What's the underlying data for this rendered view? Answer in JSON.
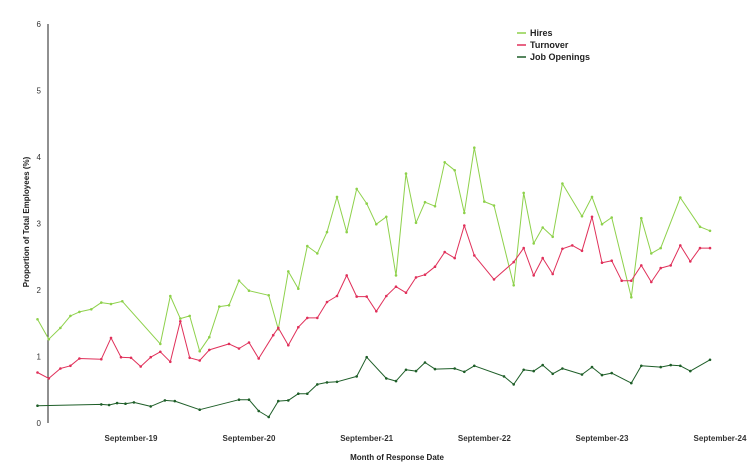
{
  "chart_data": {
    "type": "line",
    "xlabel": "Month of Response Date",
    "ylabel": "Proportion of Total Employees (%)",
    "ylim": [
      0,
      6
    ],
    "yticks": [
      "0",
      "1",
      "2",
      "3",
      "4",
      "5",
      "6"
    ],
    "xticks": [
      {
        "label": "September-19",
        "date": "2019-09"
      },
      {
        "label": "September-20",
        "date": "2020-09"
      },
      {
        "label": "September-21",
        "date": "2021-09"
      },
      {
        "label": "September-22",
        "date": "2022-09"
      },
      {
        "label": "September-23",
        "date": "2023-09"
      },
      {
        "label": "September-24",
        "date": "2024-09"
      }
    ],
    "legend_position": "top-right",
    "series": [
      {
        "name": "Hires",
        "color": "#8ed14b",
        "points": [
          [
            "2018-11-15",
            1.56
          ],
          [
            "2018-12-20",
            1.26
          ],
          [
            "2019-01-25",
            1.43
          ],
          [
            "2019-02-25",
            1.61
          ],
          [
            "2019-03-25",
            1.67
          ],
          [
            "2019-05-01",
            1.71
          ],
          [
            "2019-06-01",
            1.81
          ],
          [
            "2019-07-01",
            1.79
          ],
          [
            "2019-08-05",
            1.83
          ],
          [
            "2019-12-01",
            1.19
          ],
          [
            "2020-01-01",
            1.91
          ],
          [
            "2020-02-01",
            1.57
          ],
          [
            "2020-03-01",
            1.61
          ],
          [
            "2020-04-01",
            1.08
          ],
          [
            "2020-05-01",
            1.29
          ],
          [
            "2020-06-01",
            1.75
          ],
          [
            "2020-07-01",
            1.77
          ],
          [
            "2020-08-01",
            2.14
          ],
          [
            "2020-09-01",
            1.99
          ],
          [
            "2020-11-01",
            1.92
          ],
          [
            "2020-12-01",
            1.41
          ],
          [
            "2021-01-01",
            2.28
          ],
          [
            "2021-02-01",
            2.02
          ],
          [
            "2021-03-01",
            2.66
          ],
          [
            "2021-04-01",
            2.55
          ],
          [
            "2021-05-01",
            2.87
          ],
          [
            "2021-06-01",
            3.4
          ],
          [
            "2021-07-01",
            2.87
          ],
          [
            "2021-08-01",
            3.52
          ],
          [
            "2021-09-01",
            3.3
          ],
          [
            "2021-10-01",
            2.99
          ],
          [
            "2021-11-01",
            3.1
          ],
          [
            "2021-12-01",
            2.22
          ],
          [
            "2022-01-01",
            3.75
          ],
          [
            "2022-02-01",
            3.01
          ],
          [
            "2022-03-01",
            3.32
          ],
          [
            "2022-04-01",
            3.26
          ],
          [
            "2022-05-01",
            3.92
          ],
          [
            "2022-06-01",
            3.8
          ],
          [
            "2022-07-01",
            3.16
          ],
          [
            "2022-08-01",
            4.14
          ],
          [
            "2022-09-01",
            3.33
          ],
          [
            "2022-10-01",
            3.27
          ],
          [
            "2022-12-01",
            2.07
          ],
          [
            "2023-01-01",
            3.46
          ],
          [
            "2023-02-01",
            2.7
          ],
          [
            "2023-03-01",
            2.94
          ],
          [
            "2023-04-01",
            2.8
          ],
          [
            "2023-05-01",
            3.6
          ],
          [
            "2023-07-01",
            3.11
          ],
          [
            "2023-08-01",
            3.4
          ],
          [
            "2023-09-01",
            2.99
          ],
          [
            "2023-10-01",
            3.09
          ],
          [
            "2023-12-01",
            1.89
          ],
          [
            "2024-01-01",
            3.08
          ],
          [
            "2024-02-01",
            2.55
          ],
          [
            "2024-03-01",
            2.63
          ],
          [
            "2024-05-01",
            3.39
          ],
          [
            "2024-07-01",
            2.95
          ],
          [
            "2024-08-01",
            2.89
          ]
        ]
      },
      {
        "name": "Turnover",
        "color": "#e0305a",
        "points": [
          [
            "2018-11-15",
            0.76
          ],
          [
            "2018-12-20",
            0.67
          ],
          [
            "2019-01-25",
            0.82
          ],
          [
            "2019-02-25",
            0.86
          ],
          [
            "2019-03-25",
            0.97
          ],
          [
            "2019-06-01",
            0.96
          ],
          [
            "2019-07-01",
            1.28
          ],
          [
            "2019-08-01",
            0.99
          ],
          [
            "2019-09-01",
            0.98
          ],
          [
            "2019-10-01",
            0.85
          ],
          [
            "2019-11-01",
            0.99
          ],
          [
            "2019-12-01",
            1.07
          ],
          [
            "2020-01-01",
            0.92
          ],
          [
            "2020-02-01",
            1.53
          ],
          [
            "2020-03-01",
            0.98
          ],
          [
            "2020-04-01",
            0.94
          ],
          [
            "2020-05-01",
            1.1
          ],
          [
            "2020-07-01",
            1.19
          ],
          [
            "2020-08-01",
            1.12
          ],
          [
            "2020-09-01",
            1.21
          ],
          [
            "2020-10-01",
            0.97
          ],
          [
            "2020-11-15",
            1.32
          ],
          [
            "2020-12-01",
            1.43
          ],
          [
            "2021-01-01",
            1.17
          ],
          [
            "2021-02-01",
            1.44
          ],
          [
            "2021-03-01",
            1.58
          ],
          [
            "2021-04-01",
            1.58
          ],
          [
            "2021-05-01",
            1.82
          ],
          [
            "2021-06-01",
            1.91
          ],
          [
            "2021-07-01",
            2.22
          ],
          [
            "2021-08-01",
            1.9
          ],
          [
            "2021-09-01",
            1.9
          ],
          [
            "2021-10-01",
            1.68
          ],
          [
            "2021-11-01",
            1.91
          ],
          [
            "2021-12-01",
            2.05
          ],
          [
            "2022-01-01",
            1.96
          ],
          [
            "2022-02-01",
            2.19
          ],
          [
            "2022-03-01",
            2.23
          ],
          [
            "2022-04-01",
            2.35
          ],
          [
            "2022-05-01",
            2.57
          ],
          [
            "2022-06-01",
            2.48
          ],
          [
            "2022-07-01",
            2.97
          ],
          [
            "2022-08-01",
            2.52
          ],
          [
            "2022-10-01",
            2.16
          ],
          [
            "2022-12-01",
            2.42
          ],
          [
            "2023-01-01",
            2.63
          ],
          [
            "2023-02-01",
            2.22
          ],
          [
            "2023-03-01",
            2.48
          ],
          [
            "2023-04-01",
            2.24
          ],
          [
            "2023-05-01",
            2.62
          ],
          [
            "2023-06-01",
            2.67
          ],
          [
            "2023-07-01",
            2.59
          ],
          [
            "2023-08-01",
            3.1
          ],
          [
            "2023-09-01",
            2.41
          ],
          [
            "2023-10-01",
            2.44
          ],
          [
            "2023-11-01",
            2.14
          ],
          [
            "2023-12-01",
            2.14
          ],
          [
            "2024-01-01",
            2.37
          ],
          [
            "2024-02-01",
            2.12
          ],
          [
            "2024-03-01",
            2.33
          ],
          [
            "2024-04-01",
            2.37
          ],
          [
            "2024-05-01",
            2.67
          ],
          [
            "2024-06-01",
            2.43
          ],
          [
            "2024-07-01",
            2.63
          ],
          [
            "2024-08-01",
            2.63
          ]
        ]
      },
      {
        "name": "Job Openings",
        "color": "#1e5e28",
        "points": [
          [
            "2018-11-15",
            0.26
          ],
          [
            "2019-06-01",
            0.28
          ],
          [
            "2019-06-25",
            0.27
          ],
          [
            "2019-07-20",
            0.3
          ],
          [
            "2019-08-15",
            0.29
          ],
          [
            "2019-09-10",
            0.31
          ],
          [
            "2019-11-01",
            0.25
          ],
          [
            "2019-12-15",
            0.34
          ],
          [
            "2020-01-15",
            0.33
          ],
          [
            "2020-04-01",
            0.2
          ],
          [
            "2020-08-01",
            0.35
          ],
          [
            "2020-09-01",
            0.35
          ],
          [
            "2020-10-01",
            0.18
          ],
          [
            "2020-11-01",
            0.09
          ],
          [
            "2020-12-01",
            0.33
          ],
          [
            "2021-01-01",
            0.34
          ],
          [
            "2021-02-01",
            0.44
          ],
          [
            "2021-03-01",
            0.44
          ],
          [
            "2021-04-01",
            0.58
          ],
          [
            "2021-05-01",
            0.61
          ],
          [
            "2021-06-01",
            0.62
          ],
          [
            "2021-08-01",
            0.7
          ],
          [
            "2021-09-01",
            0.99
          ],
          [
            "2021-11-01",
            0.67
          ],
          [
            "2021-12-01",
            0.63
          ],
          [
            "2022-01-01",
            0.8
          ],
          [
            "2022-02-01",
            0.78
          ],
          [
            "2022-03-01",
            0.91
          ],
          [
            "2022-04-01",
            0.81
          ],
          [
            "2022-06-01",
            0.82
          ],
          [
            "2022-07-01",
            0.77
          ],
          [
            "2022-08-01",
            0.86
          ],
          [
            "2022-11-01",
            0.7
          ],
          [
            "2022-12-01",
            0.58
          ],
          [
            "2023-01-01",
            0.8
          ],
          [
            "2023-02-01",
            0.78
          ],
          [
            "2023-03-01",
            0.87
          ],
          [
            "2023-04-01",
            0.74
          ],
          [
            "2023-05-01",
            0.82
          ],
          [
            "2023-07-01",
            0.73
          ],
          [
            "2023-08-01",
            0.84
          ],
          [
            "2023-09-01",
            0.72
          ],
          [
            "2023-10-01",
            0.75
          ],
          [
            "2023-12-01",
            0.6
          ],
          [
            "2024-01-01",
            0.86
          ],
          [
            "2024-03-01",
            0.84
          ],
          [
            "2024-04-01",
            0.87
          ],
          [
            "2024-05-01",
            0.86
          ],
          [
            "2024-06-01",
            0.78
          ],
          [
            "2024-08-01",
            0.95
          ]
        ]
      }
    ]
  }
}
